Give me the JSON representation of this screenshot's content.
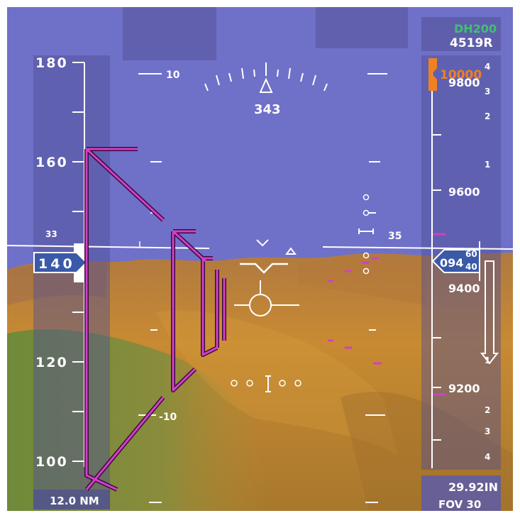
{
  "colors": {
    "sky": "#6f70c8",
    "terrain_orange": "#c88a32",
    "terrain_green": "#7e8a40",
    "symbology": "#ffffff",
    "tunnel": "#d040c8",
    "bug_orange": "#f08020",
    "decision_height_green": "#40c070",
    "tape_bg": "#5a5aa0"
  },
  "speed_tape": {
    "labels": [
      "180",
      "160",
      "120",
      "100"
    ],
    "current": "140",
    "distance": "12.0 NM"
  },
  "altitude_tape": {
    "decision_height": "DH200",
    "radio_altitude": "4519R",
    "bug_value": "10000",
    "labels": [
      "9800",
      "9600",
      "9400",
      "9200"
    ],
    "current_hundreds": "094",
    "rolling_digits": [
      "60",
      "40"
    ],
    "vsi_scale": [
      "4",
      "3",
      "2",
      "1",
      "1",
      "2",
      "3",
      "4"
    ],
    "baro_setting": "29.92IN",
    "fov": "FOV 30"
  },
  "pitch_ladder": {
    "up": "10",
    "down": "-10"
  },
  "heading": {
    "value": "343",
    "horizon_left": "33",
    "horizon_right": "35"
  },
  "icons": [
    "heading-pointer-icon",
    "aircraft-reference-icon",
    "flight-path-marker-icon",
    "acceleration-caret-icon",
    "speed-error-worm-icon",
    "vertical-speed-arrow-icon"
  ]
}
